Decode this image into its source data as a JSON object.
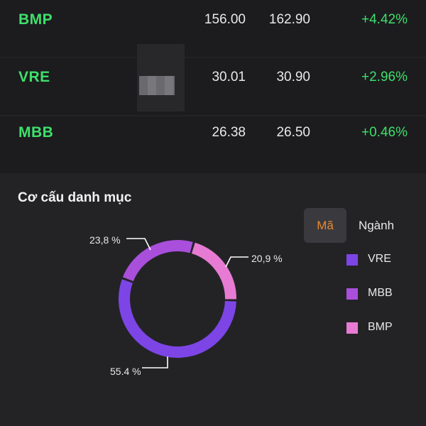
{
  "stocks": [
    {
      "symbol": "BMP",
      "price_1": "156.00",
      "price_2": "162.90",
      "change": "+4.42%"
    },
    {
      "symbol": "VRE",
      "price_1": "30.01",
      "price_2": "30.90",
      "change": "+2.96%"
    },
    {
      "symbol": "MBB",
      "price_1": "26.38",
      "price_2": "26.50",
      "change": "+0.46%"
    }
  ],
  "portfolio": {
    "title": "Cơ cấu danh mục",
    "tabs": {
      "code": "Mã",
      "sector": "Ngành"
    },
    "legend": [
      {
        "label": "VRE",
        "color": "#7d45e6"
      },
      {
        "label": "MBB",
        "color": "#a94fdc"
      },
      {
        "label": "BMP",
        "color": "#e77bd3"
      }
    ]
  },
  "chart_data": {
    "type": "pie",
    "categories": [
      "VRE",
      "MBB",
      "BMP"
    ],
    "values": [
      55.4,
      23.8,
      20.9
    ],
    "data_labels": [
      "55.4 %",
      "23,8 %",
      "20,9 %"
    ],
    "colors": [
      "#7d45e6",
      "#a94fdc",
      "#e77bd3"
    ],
    "style": "donut"
  },
  "colors": {
    "positive": "#3ee06a",
    "accent_tab": "#e98a2e",
    "background": "#232326",
    "row_background": "#1c1c1f"
  }
}
